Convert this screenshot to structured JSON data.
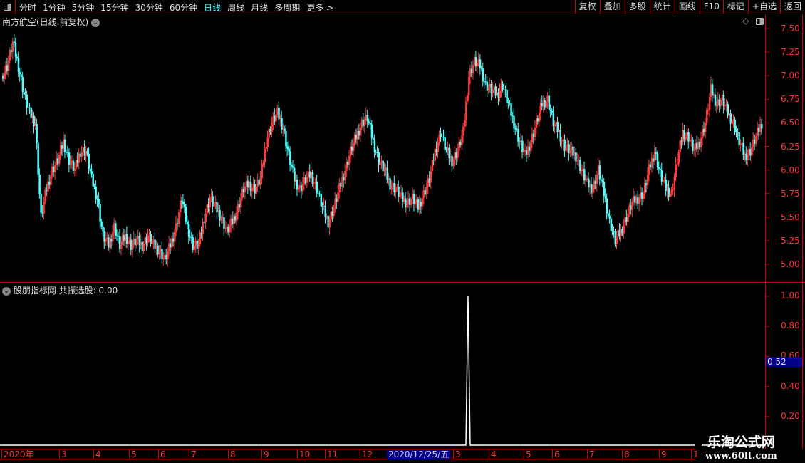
{
  "toolbar": {
    "periods": [
      "分时",
      "1分钟",
      "5分钟",
      "15分钟",
      "30分钟",
      "60分钟",
      "日线",
      "周线",
      "月线",
      "多周期",
      "更多 >"
    ],
    "active": "日线",
    "right_buttons": [
      "复权",
      "叠加",
      "多股",
      "统计",
      "画线",
      "F10",
      "标记",
      "+自选",
      "返回"
    ]
  },
  "main": {
    "title": "南方航空(日线.前复权)",
    "y_ticks": [
      "7.50",
      "7.25",
      "7.00",
      "6.75",
      "6.50",
      "6.25",
      "6.00",
      "5.75",
      "5.50",
      "5.25",
      "5.00"
    ]
  },
  "indicator": {
    "title": "股朋指标网",
    "label": "共振选股: 0.00",
    "y_ticks": [
      "1.00",
      "0.80",
      "0.60",
      "0.40",
      "0.20"
    ],
    "cursor_value": "0.52",
    "spike_value": 1.0
  },
  "x_axis": {
    "labels": [
      "2020年",
      "3",
      "4",
      "5",
      "6",
      "7",
      "8",
      "9",
      "10",
      "11",
      "12",
      "3",
      "4",
      "5",
      "6",
      "7",
      "8",
      "9",
      "1"
    ],
    "selected_date": "2020/12/25/五"
  },
  "watermark": {
    "name": "乐淘公式网",
    "url": "www.60lt.com"
  },
  "colors": {
    "up": "#ff3b3b",
    "down": "#54ffff",
    "axis": "#cc0000",
    "active_tab": "#44ffff",
    "cursor_box": "#00008b"
  },
  "chart_data": {
    "type": "candlestick",
    "ylim": [
      4.9,
      7.55
    ],
    "closes": [
      7.0,
      7.1,
      7.35,
      7.1,
      6.8,
      6.6,
      6.5,
      5.5,
      5.8,
      6.0,
      6.1,
      6.3,
      6.1,
      6.0,
      6.2,
      6.2,
      5.9,
      5.7,
      5.3,
      5.2,
      5.4,
      5.2,
      5.3,
      5.2,
      5.25,
      5.2,
      5.3,
      5.2,
      5.15,
      5.05,
      5.2,
      5.4,
      5.7,
      5.4,
      5.2,
      5.2,
      5.5,
      5.7,
      5.6,
      5.5,
      5.35,
      5.45,
      5.6,
      5.8,
      5.85,
      5.8,
      5.9,
      6.3,
      6.5,
      6.6,
      6.45,
      6.15,
      5.9,
      5.8,
      5.9,
      5.95,
      5.8,
      5.6,
      5.45,
      5.6,
      5.8,
      6.0,
      6.2,
      6.35,
      6.5,
      6.55,
      6.3,
      6.1,
      6.0,
      5.85,
      5.8,
      5.7,
      5.65,
      5.7,
      5.6,
      5.75,
      5.9,
      6.2,
      6.4,
      6.2,
      6.1,
      6.2,
      6.4,
      7.0,
      7.15,
      7.1,
      6.9,
      6.85,
      6.8,
      6.9,
      6.7,
      6.5,
      6.3,
      6.15,
      6.3,
      6.5,
      6.7,
      6.75,
      6.5,
      6.4,
      6.25,
      6.2,
      6.15,
      6.0,
      5.85,
      5.8,
      6.0,
      5.75,
      5.45,
      5.25,
      5.35,
      5.5,
      5.65,
      5.7,
      5.75,
      6.0,
      6.2,
      5.95,
      5.8,
      5.75,
      6.1,
      6.4,
      6.35,
      6.2,
      6.3,
      6.5,
      6.85,
      6.7,
      6.75,
      6.6,
      6.5,
      6.3,
      6.15,
      6.2,
      6.35,
      6.5
    ]
  }
}
